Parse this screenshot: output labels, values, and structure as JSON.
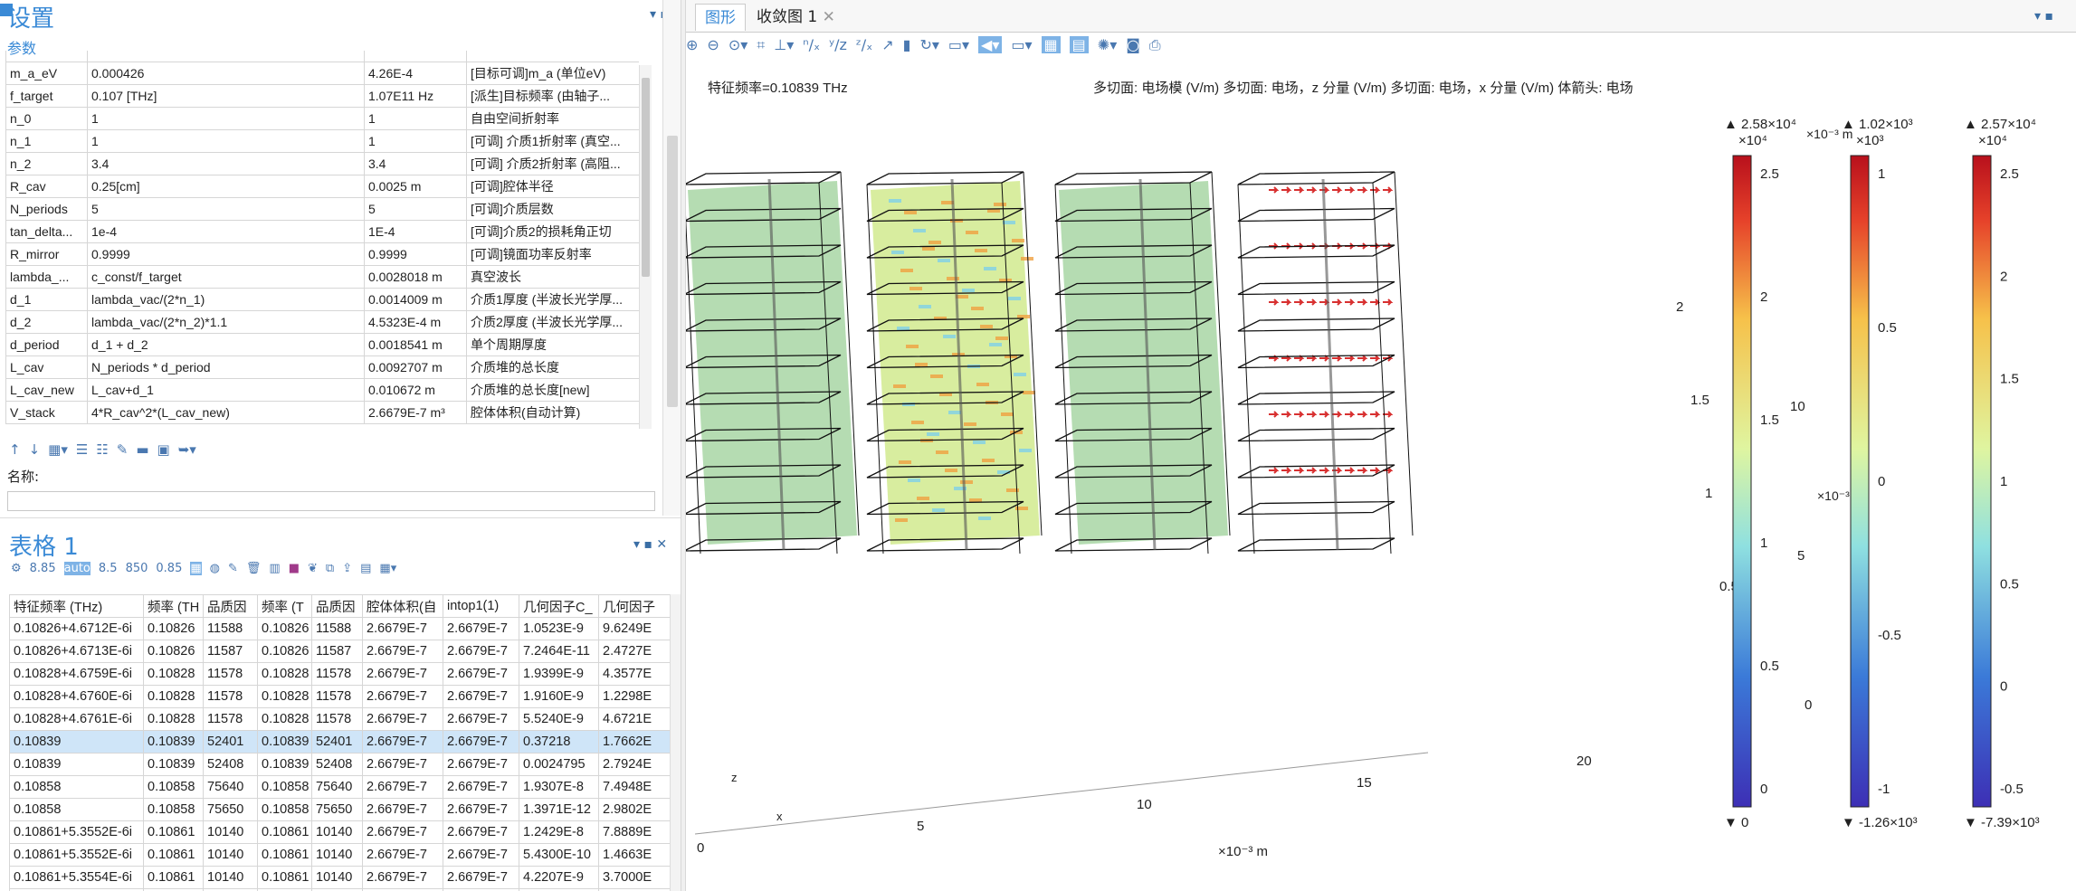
{
  "settings": {
    "title": "设置",
    "section": "参数",
    "name_label": "名称:",
    "params": [
      [
        "m_a_eV",
        "0.000426",
        "4.26E-4",
        "[目标可调]m_a (单位eV)"
      ],
      [
        "f_target",
        "0.107 [THz]",
        "1.07E11 Hz",
        "[派生]目标频率 (由轴子..."
      ],
      [
        "n_0",
        "1",
        "1",
        "自由空间折射率"
      ],
      [
        "n_1",
        "1",
        "1",
        "[可调] 介质1折射率 (真空..."
      ],
      [
        "n_2",
        "3.4",
        "3.4",
        "[可调] 介质2折射率 (高阻..."
      ],
      [
        "R_cav",
        "0.25[cm]",
        "0.0025 m",
        "[可调]腔体半径"
      ],
      [
        "N_periods",
        "5",
        "5",
        "[可调]介质层数"
      ],
      [
        "tan_delta...",
        "1e-4",
        "1E-4",
        "[可调]介质2的损耗角正切"
      ],
      [
        "R_mirror",
        "0.9999",
        "0.9999",
        "[可调]镜面功率反射率"
      ],
      [
        "lambda_...",
        "c_const/f_target",
        "0.0028018 m",
        "真空波长"
      ],
      [
        "d_1",
        "lambda_vac/(2*n_1)",
        "0.0014009 m",
        "介质1厚度 (半波长光学厚..."
      ],
      [
        "d_2",
        "lambda_vac/(2*n_2)*1.1",
        "4.5323E-4 m",
        "介质2厚度 (半波长光学厚..."
      ],
      [
        "d_period",
        "d_1 + d_2",
        "0.0018541 m",
        "单个周期厚度"
      ],
      [
        "L_cav",
        "N_periods * d_period",
        "0.0092707 m",
        "介质堆的总长度"
      ],
      [
        "L_cav_new",
        "L_cav+d_1",
        "0.010672 m",
        "介质堆的总长度[new]"
      ],
      [
        "V_stack",
        "4*R_cav^2*(L_cav_new)",
        "2.6679E-7 m³",
        "腔体体积(自动计算)"
      ]
    ]
  },
  "table1": {
    "title": "表格 1",
    "headers": [
      "特征频率 (THz)",
      "频率 (TH",
      "品质因",
      "频率 (T",
      "品质因",
      "腔体体积(自",
      "intop1(1)",
      "几何因子C_",
      "几何因子"
    ],
    "selected_row": 5,
    "rows": [
      [
        "0.10826+4.6712E-6i",
        "0.10826",
        "11588",
        "0.10826",
        "11588",
        "2.6679E-7",
        "2.6679E-7",
        "1.0523E-9",
        "9.6249E"
      ],
      [
        "0.10826+4.6713E-6i",
        "0.10826",
        "11587",
        "0.10826",
        "11587",
        "2.6679E-7",
        "2.6679E-7",
        "7.2464E-11",
        "2.4727E"
      ],
      [
        "0.10828+4.6759E-6i",
        "0.10828",
        "11578",
        "0.10828",
        "11578",
        "2.6679E-7",
        "2.6679E-7",
        "1.9399E-9",
        "4.3577E"
      ],
      [
        "0.10828+4.6760E-6i",
        "0.10828",
        "11578",
        "0.10828",
        "11578",
        "2.6679E-7",
        "2.6679E-7",
        "1.9160E-9",
        "1.2298E"
      ],
      [
        "0.10828+4.6761E-6i",
        "0.10828",
        "11578",
        "0.10828",
        "11578",
        "2.6679E-7",
        "2.6679E-7",
        "5.5240E-9",
        "4.6721E"
      ],
      [
        "0.10839",
        "0.10839",
        "52401",
        "0.10839",
        "52401",
        "2.6679E-7",
        "2.6679E-7",
        "0.37218",
        "1.7662E"
      ],
      [
        "0.10839",
        "0.10839",
        "52408",
        "0.10839",
        "52408",
        "2.6679E-7",
        "2.6679E-7",
        "0.0024795",
        "2.7924E"
      ],
      [
        "0.10858",
        "0.10858",
        "75640",
        "0.10858",
        "75640",
        "2.6679E-7",
        "2.6679E-7",
        "1.9307E-8",
        "7.4948E"
      ],
      [
        "0.10858",
        "0.10858",
        "75650",
        "0.10858",
        "75650",
        "2.6679E-7",
        "2.6679E-7",
        "1.3971E-12",
        "2.9802E"
      ],
      [
        "0.10861+5.3552E-6i",
        "0.10861",
        "10140",
        "0.10861",
        "10140",
        "2.6679E-7",
        "2.6679E-7",
        "1.2429E-8",
        "7.8889E"
      ],
      [
        "0.10861+5.3552E-6i",
        "0.10861",
        "10140",
        "0.10861",
        "10140",
        "2.6679E-7",
        "2.6679E-7",
        "5.4300E-10",
        "1.4663E"
      ],
      [
        "0.10861+5.3554E-6i",
        "0.10861",
        "10140",
        "0.10861",
        "10140",
        "2.6679E-7",
        "2.6679E-7",
        "4.2207E-9",
        "3.7000E"
      ],
      [
        "0.10861+5.3554E-6i",
        "0.10861",
        "10140",
        "0.10861",
        "10140",
        "2.6679E-7",
        "2.6679E-7",
        "3.2244E-8",
        "2.6562E"
      ]
    ]
  },
  "graphics": {
    "tabs": [
      "图形",
      "收敛图 1"
    ],
    "eigenfreq": "特征频率=0.10839 THz",
    "plot_title": "多切面: 电场模 (V/m)  多切面: 电场，z 分量 (V/m)  多切面: 电场，x 分量 (V/m)  体箭头: 电场",
    "x_ticks": [
      "0",
      "5",
      "10",
      "15",
      "20"
    ],
    "x_unit": "×10⁻³ m",
    "y_ticks": [
      "0",
      "0.5",
      "1",
      "1.5",
      "2"
    ],
    "y_unit": "×10⁻³ m",
    "z_ticks": [
      "0",
      "5",
      "10"
    ],
    "z_unit": "×10⁻³",
    "axis_labels": {
      "z": "z",
      "x": "x"
    },
    "legends": [
      {
        "max": "▲ 2.58×10⁴",
        "exp": "×10⁴",
        "min": "▼ 0",
        "ticks": [
          "2.5",
          "2",
          "1.5",
          "1",
          "0.5",
          "0"
        ],
        "colormap": "rainbow"
      },
      {
        "max": "▲ 1.02×10³",
        "exp": "×10³",
        "min": "▼ -1.26×10³",
        "ticks": [
          "1",
          "0.5",
          "0",
          "-0.5",
          "-1"
        ],
        "colormap": "rainbow"
      },
      {
        "max": "▲ 2.57×10⁴",
        "exp": "×10⁴",
        "min": "▼ -7.39×10³",
        "ticks": [
          "2.5",
          "2",
          "1.5",
          "1",
          "0.5",
          "0",
          "-0.5"
        ],
        "colormap": "rainbow"
      }
    ]
  }
}
